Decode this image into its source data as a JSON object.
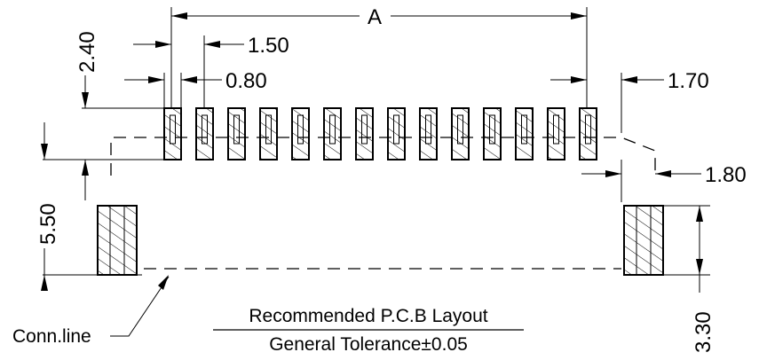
{
  "diagram": {
    "dimensions": {
      "a": "A",
      "pitch": "1.50",
      "pad_width": "0.80",
      "pad_height": "2.40",
      "edge_offset": "1.70",
      "mount_pad_width": "1.80",
      "height": "5.50",
      "mount_pad_height": "3.30"
    },
    "labels": {
      "conn_line": "Conn.line",
      "title": "Recommended P.C.B Layout",
      "tolerance": "General Tolerance±0.05"
    },
    "signal_pad_count": 14,
    "mount_pad_count": 2
  }
}
